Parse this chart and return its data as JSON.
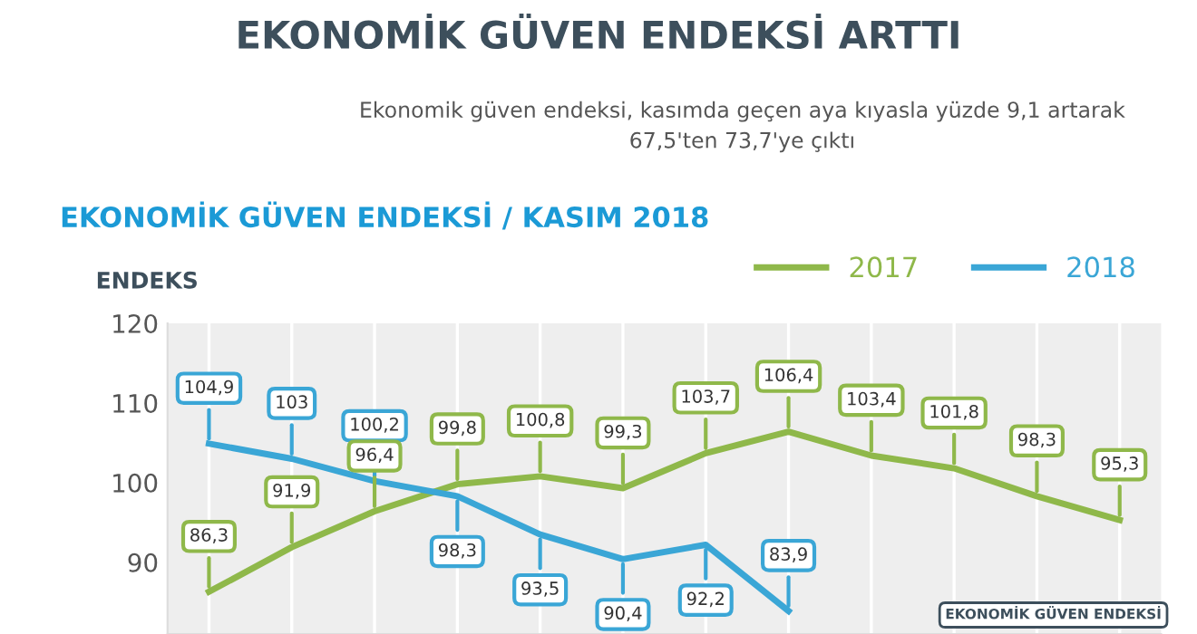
{
  "chart_data": {
    "type": "line",
    "title": "EKONOMİK GÜVEN ENDEKSİ ARTTI",
    "subtitle": "Ekonomik güven endeksi, kasımda geçen aya kıyasla yüzde 9,1 artarak\n67,5'ten 73,7'ye çıktı",
    "ylabel": "ENDEKS",
    "annotations": [
      "EKONOMİK GÜVEN ENDEKSİ / KASIM 2018",
      "EKONOMİK GÜVEN ENDEKSİ"
    ],
    "categories": [
      null,
      null,
      null,
      null,
      null,
      null,
      null,
      null,
      null,
      null,
      null,
      null
    ],
    "series": [
      {
        "name": "2017",
        "color": "#8fb84a",
        "values": [
          86.3,
          91.9,
          96.4,
          99.8,
          100.8,
          99.3,
          103.7,
          106.4,
          103.4,
          101.8,
          98.3,
          95.3
        ],
        "value_labels": [
          "86,3",
          "91,9",
          "96,4",
          "99,8",
          "100,8",
          "99,3",
          "103,7",
          "106,4",
          "103,4",
          "101,8",
          "98,3",
          "95,3"
        ]
      },
      {
        "name": "2018",
        "color": "#3aa6d6",
        "values": [
          104.9,
          103,
          100.2,
          98.3,
          93.5,
          90.4,
          92.2,
          83.9,
          null,
          null,
          null,
          null
        ],
        "value_labels": [
          "104,9",
          "103",
          "100,2",
          "98,3",
          "93,5",
          "90,4",
          "92,2",
          "83,9",
          null,
          null,
          null,
          null
        ]
      }
    ],
    "ylim": [
      81,
      120
    ],
    "yticks": [
      90,
      100,
      110,
      120
    ],
    "grid": "x",
    "legend": "top right",
    "marker": "none",
    "line_style": "solid"
  }
}
